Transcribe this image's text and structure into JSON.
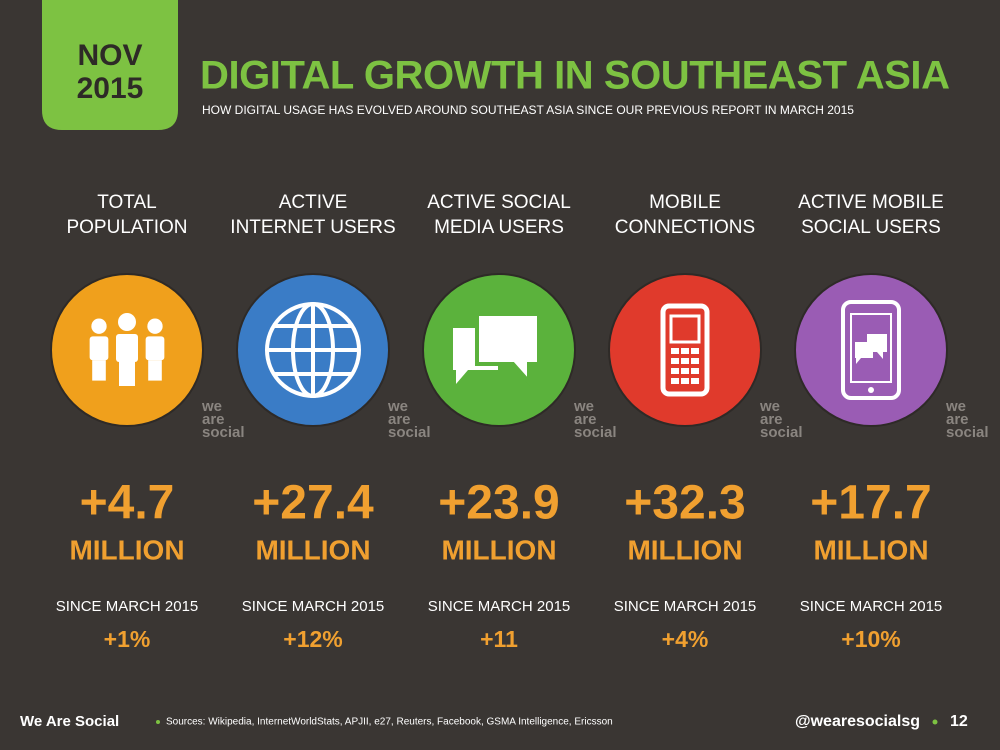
{
  "header": {
    "badge": [
      "NOV",
      "2015"
    ],
    "title": "DIGITAL GROWTH IN SOUTHEAST ASIA",
    "subtitle": "HOW DIGITAL USAGE HAS EVOLVED AROUND SOUTHEAST ASIA SINCE OUR PREVIOUS REPORT IN MARCH 2015"
  },
  "watermark": [
    "we",
    "are",
    "social"
  ],
  "columns": [
    {
      "label": [
        "TOTAL",
        "POPULATION"
      ],
      "value": "+4.7",
      "unit": "MILLION",
      "since": "SINCE MARCH 2015",
      "change": "+1%"
    },
    {
      "label": [
        "ACTIVE",
        "INTERNET USERS"
      ],
      "value": "+27.4",
      "unit": "MILLION",
      "since": "SINCE MARCH 2015",
      "change": "+12%"
    },
    {
      "label": [
        "ACTIVE SOCIAL",
        "MEDIA USERS"
      ],
      "value": "+23.9",
      "unit": "MILLION",
      "since": "SINCE MARCH 2015",
      "change": "+11"
    },
    {
      "label": [
        "MOBILE",
        "CONNECTIONS"
      ],
      "value": "+32.3",
      "unit": "MILLION",
      "since": "SINCE MARCH 2015",
      "change": "+4%"
    },
    {
      "label": [
        "ACTIVE MOBILE",
        "SOCIAL USERS"
      ],
      "value": "+17.7",
      "unit": "MILLION",
      "since": "SINCE MARCH 2015",
      "change": "+10%"
    }
  ],
  "footer": {
    "brand": "We Are Social",
    "sources": "Sources: Wikipedia, InternetWorldStats, APJII, e27, Reuters, Facebook, GSMA Intelligence, Ericsson",
    "handle": "@wearesocialsg",
    "page": "12"
  }
}
